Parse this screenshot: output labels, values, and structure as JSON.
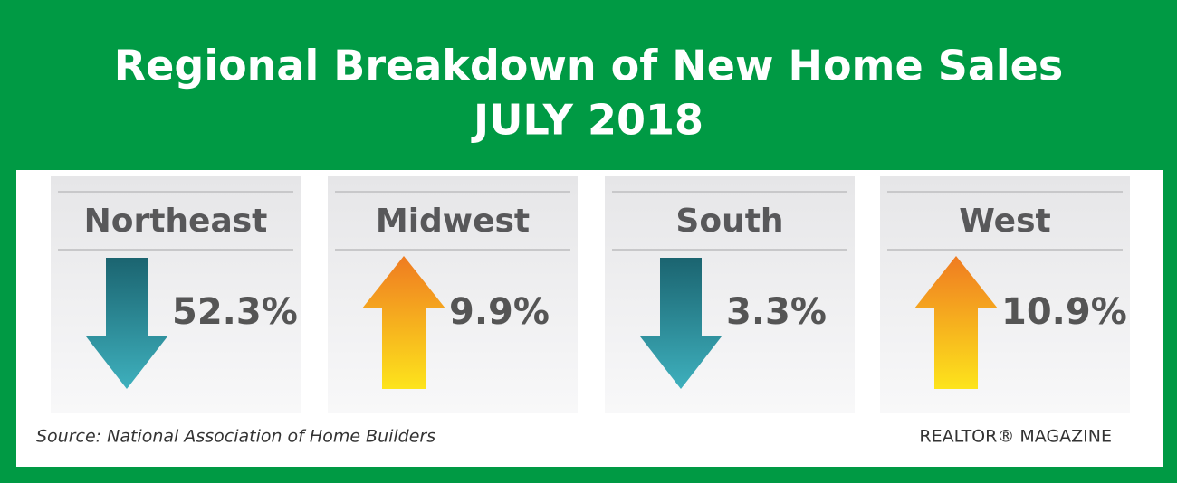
{
  "header": {
    "title": "Regional Breakdown of New Home Sales",
    "subtitle": "JULY 2018"
  },
  "regions": [
    {
      "name": "Northeast",
      "change": "52.3%",
      "direction": "down"
    },
    {
      "name": "Midwest",
      "change": "9.9%",
      "direction": "up"
    },
    {
      "name": "South",
      "change": "3.3%",
      "direction": "down"
    },
    {
      "name": "West",
      "change": "10.9%",
      "direction": "up"
    }
  ],
  "footer": {
    "source": "Source: National Association of Home Builders",
    "brand": "REALTOR® MAGAZINE"
  }
}
